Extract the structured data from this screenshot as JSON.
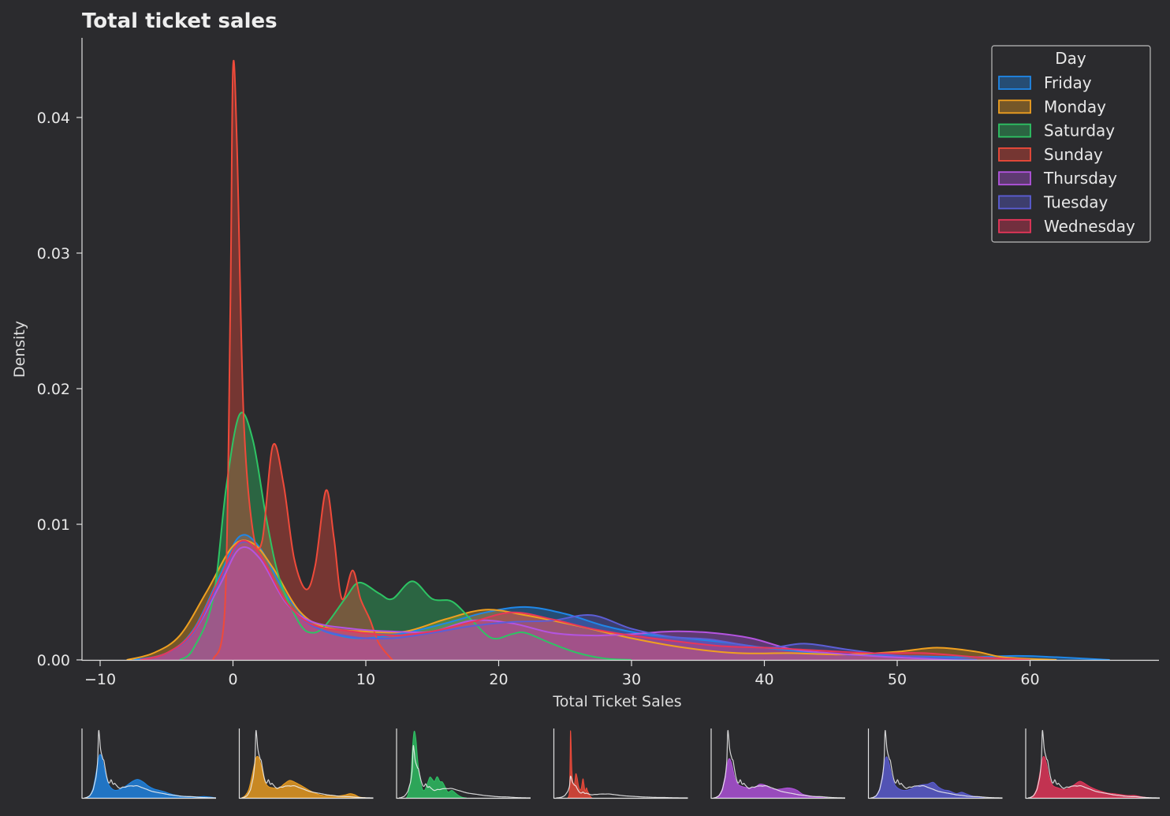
{
  "chart_data": {
    "type": "area",
    "title": "Total ticket sales",
    "xlabel": "Total Ticket Sales",
    "ylabel": "Density",
    "xlim": [
      -11,
      69
    ],
    "ylim": [
      0,
      0.046
    ],
    "xticks": [
      "−10",
      "0",
      "10",
      "20",
      "30",
      "40",
      "50",
      "60"
    ],
    "xtick_values": [
      -10,
      0,
      10,
      20,
      30,
      40,
      50,
      60
    ],
    "yticks": [
      "0.00",
      "0.01",
      "0.02",
      "0.03",
      "0.04"
    ],
    "ytick_values": [
      0,
      0.01,
      0.02,
      0.03,
      0.04
    ],
    "legend": {
      "title": "Day",
      "position": "top-right"
    },
    "grid": false,
    "series": [
      {
        "name": "Friday",
        "color": "#1f87e8",
        "points": [
          [
            -7.5,
            0
          ],
          [
            -5,
            0.0005
          ],
          [
            -3,
            0.0022
          ],
          [
            -1,
            0.0062
          ],
          [
            0.5,
            0.0091
          ],
          [
            2,
            0.0083
          ],
          [
            4,
            0.0048
          ],
          [
            6,
            0.0026
          ],
          [
            8,
            0.0018
          ],
          [
            10,
            0.0016
          ],
          [
            13,
            0.002
          ],
          [
            16,
            0.0027
          ],
          [
            19,
            0.0035
          ],
          [
            22,
            0.0039
          ],
          [
            25,
            0.0034
          ],
          [
            28,
            0.0025
          ],
          [
            31,
            0.0019
          ],
          [
            34,
            0.0016
          ],
          [
            37,
            0.0013
          ],
          [
            40,
            0.0009
          ],
          [
            43,
            0.0006
          ],
          [
            46,
            0.0004
          ],
          [
            50,
            0.0003
          ],
          [
            55,
            0.0002
          ],
          [
            59,
            0.0003
          ],
          [
            62,
            0.0002
          ],
          [
            66,
            0
          ]
        ]
      },
      {
        "name": "Monday",
        "color": "#f0a020",
        "points": [
          [
            -8,
            0
          ],
          [
            -6,
            0.0005
          ],
          [
            -4,
            0.0018
          ],
          [
            -2,
            0.005
          ],
          [
            0,
            0.0084
          ],
          [
            1.5,
            0.0086
          ],
          [
            3,
            0.0068
          ],
          [
            5,
            0.0036
          ],
          [
            7,
            0.0024
          ],
          [
            10,
            0.0021
          ],
          [
            13,
            0.0021
          ],
          [
            16,
            0.003
          ],
          [
            19,
            0.0037
          ],
          [
            22,
            0.0033
          ],
          [
            26,
            0.0025
          ],
          [
            30,
            0.0016
          ],
          [
            34,
            0.0009
          ],
          [
            38,
            0.0005
          ],
          [
            42,
            0.0005
          ],
          [
            46,
            0.0004
          ],
          [
            50,
            0.0006
          ],
          [
            53,
            0.0009
          ],
          [
            56,
            0.0006
          ],
          [
            58,
            0.0002
          ],
          [
            62,
            0
          ]
        ]
      },
      {
        "name": "Saturday",
        "color": "#2ec464",
        "points": [
          [
            -4,
            0
          ],
          [
            -3,
            0.0008
          ],
          [
            -1.5,
            0.0045
          ],
          [
            -0.5,
            0.0128
          ],
          [
            0.5,
            0.0181
          ],
          [
            1.5,
            0.0162
          ],
          [
            2.5,
            0.0105
          ],
          [
            3.5,
            0.006
          ],
          [
            5,
            0.0027
          ],
          [
            6,
            0.002
          ],
          [
            7,
            0.0026
          ],
          [
            8.5,
            0.0046
          ],
          [
            9.5,
            0.0057
          ],
          [
            11,
            0.0049
          ],
          [
            12,
            0.0045
          ],
          [
            13.5,
            0.0058
          ],
          [
            15,
            0.0045
          ],
          [
            16.5,
            0.0043
          ],
          [
            18,
            0.0029
          ],
          [
            19.5,
            0.0016
          ],
          [
            21,
            0.0019
          ],
          [
            22,
            0.002
          ],
          [
            24,
            0.0012
          ],
          [
            26,
            0.0005
          ],
          [
            28,
            0.0001
          ],
          [
            30,
            0
          ]
        ]
      },
      {
        "name": "Sunday",
        "color": "#ef4a3a",
        "points": [
          [
            -1.5,
            0
          ],
          [
            -0.6,
            0.004
          ],
          [
            -0.2,
            0.026
          ],
          [
            0,
            0.0436
          ],
          [
            0.3,
            0.038
          ],
          [
            0.8,
            0.018
          ],
          [
            1.5,
            0.0095
          ],
          [
            2.2,
            0.0088
          ],
          [
            3,
            0.0158
          ],
          [
            3.8,
            0.013
          ],
          [
            4.6,
            0.0075
          ],
          [
            5.5,
            0.0052
          ],
          [
            6.2,
            0.007
          ],
          [
            7,
            0.0125
          ],
          [
            7.6,
            0.009
          ],
          [
            8.2,
            0.0045
          ],
          [
            9,
            0.0066
          ],
          [
            9.6,
            0.0045
          ],
          [
            10.3,
            0.003
          ],
          [
            11,
            0.0012
          ],
          [
            12,
            0
          ]
        ]
      },
      {
        "name": "Thursday",
        "color": "#b454e0",
        "points": [
          [
            -7,
            0
          ],
          [
            -5,
            0.0005
          ],
          [
            -3,
            0.002
          ],
          [
            -1,
            0.0055
          ],
          [
            0.5,
            0.0082
          ],
          [
            2,
            0.0075
          ],
          [
            4,
            0.0042
          ],
          [
            6,
            0.0028
          ],
          [
            9,
            0.0023
          ],
          [
            12,
            0.0021
          ],
          [
            15,
            0.0021
          ],
          [
            18,
            0.0029
          ],
          [
            21,
            0.0027
          ],
          [
            24,
            0.002
          ],
          [
            27,
            0.0018
          ],
          [
            30,
            0.0019
          ],
          [
            33,
            0.0021
          ],
          [
            36,
            0.002
          ],
          [
            39,
            0.0016
          ],
          [
            42,
            0.0008
          ],
          [
            45,
            0.0005
          ],
          [
            48,
            0.0003
          ],
          [
            52,
            0.0001
          ],
          [
            56,
            0
          ]
        ]
      },
      {
        "name": "Tuesday",
        "color": "#5c5ed6",
        "points": [
          [
            -7,
            0
          ],
          [
            -5,
            0.0005
          ],
          [
            -3,
            0.002
          ],
          [
            -1,
            0.0058
          ],
          [
            0.5,
            0.0086
          ],
          [
            2,
            0.0078
          ],
          [
            4,
            0.0043
          ],
          [
            6,
            0.0025
          ],
          [
            9,
            0.0017
          ],
          [
            12,
            0.0016
          ],
          [
            15,
            0.002
          ],
          [
            18,
            0.0025
          ],
          [
            21,
            0.0028
          ],
          [
            24,
            0.0029
          ],
          [
            27,
            0.0033
          ],
          [
            30,
            0.0023
          ],
          [
            33,
            0.0017
          ],
          [
            36,
            0.0015
          ],
          [
            40,
            0.0009
          ],
          [
            43,
            0.0012
          ],
          [
            46,
            0.0008
          ],
          [
            49,
            0.0004
          ],
          [
            52,
            0.0002
          ],
          [
            56,
            0
          ]
        ]
      },
      {
        "name": "Wednesday",
        "color": "#e8365a",
        "points": [
          [
            -7,
            0
          ],
          [
            -5,
            0.0005
          ],
          [
            -3,
            0.0021
          ],
          [
            -1,
            0.006
          ],
          [
            0.5,
            0.0087
          ],
          [
            2,
            0.0078
          ],
          [
            4,
            0.0043
          ],
          [
            6,
            0.0026
          ],
          [
            9,
            0.0021
          ],
          [
            12,
            0.0018
          ],
          [
            15,
            0.0021
          ],
          [
            18,
            0.0028
          ],
          [
            21,
            0.0035
          ],
          [
            24,
            0.003
          ],
          [
            27,
            0.0023
          ],
          [
            30,
            0.0018
          ],
          [
            34,
            0.0013
          ],
          [
            37,
            0.001
          ],
          [
            40,
            0.0009
          ],
          [
            44,
            0.0007
          ],
          [
            48,
            0.0005
          ],
          [
            52,
            0.0005
          ],
          [
            56,
            0.0002
          ],
          [
            60,
            0
          ]
        ]
      }
    ]
  }
}
